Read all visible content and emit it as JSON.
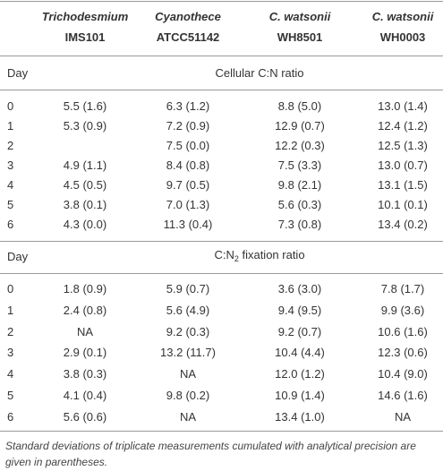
{
  "header": {
    "columns": [
      {
        "name": "Trichodesmium",
        "strain": "IMS101"
      },
      {
        "name": "Cyanothece",
        "strain": "ATCC51142"
      },
      {
        "name": "C. watsonii",
        "strain": "WH8501"
      },
      {
        "name": "C. watsonii",
        "strain": "WH0003"
      }
    ]
  },
  "sections": [
    {
      "day_label": "Day",
      "title": {
        "prefix": "Cellular C:N ratio"
      },
      "rows": [
        {
          "day": "0",
          "values": [
            "5.5 (1.6)",
            "6.3 (1.2)",
            "8.8 (5.0)",
            "13.0 (1.4)"
          ]
        },
        {
          "day": "1",
          "values": [
            "5.3 (0.9)",
            "7.2 (0.9)",
            "12.9 (0.7)",
            "12.4 (1.2)"
          ]
        },
        {
          "day": "2",
          "values": [
            null,
            "7.5 (0.0)",
            "12.2 (0.3)",
            "12.5 (1.3)"
          ]
        },
        {
          "day": "3",
          "values": [
            "4.9 (1.1)",
            "8.4 (0.8)",
            "7.5 (3.3)",
            "13.0 (0.7)"
          ]
        },
        {
          "day": "4",
          "values": [
            "4.5 (0.5)",
            "9.7 (0.5)",
            "9.8 (2.1)",
            "13.1 (1.5)"
          ]
        },
        {
          "day": "5",
          "values": [
            "3.8 (0.1)",
            "7.0 (1.3)",
            "5.6 (0.3)",
            "10.1 (0.1)"
          ]
        },
        {
          "day": "6",
          "values": [
            "4.3 (0.0)",
            "11.3 (0.4)",
            "7.3 (0.8)",
            "13.4 (0.2)"
          ]
        }
      ]
    },
    {
      "day_label": "Day",
      "title": {
        "prefix": "C:N",
        "subscript": "2",
        "suffix": " fixation ratio"
      },
      "rows": [
        {
          "day": "0",
          "values": [
            "1.8 (0.9)",
            "5.9 (0.7)",
            "3.6 (3.0)",
            "7.8 (1.7)"
          ]
        },
        {
          "day": "1",
          "values": [
            "2.4 (0.8)",
            "5.6 (4.9)",
            "9.4 (9.5)",
            "9.9 (3.6)"
          ]
        },
        {
          "day": "2",
          "values": [
            "NA",
            "9.2 (0.3)",
            "9.2 (0.7)",
            "10.6 (1.6)"
          ]
        },
        {
          "day": "3",
          "values": [
            "2.9 (0.1)",
            "13.2 (11.7)",
            "10.4 (4.4)",
            "12.3 (0.6)"
          ]
        },
        {
          "day": "4",
          "values": [
            "3.8 (0.3)",
            "NA",
            "12.0 (1.2)",
            "10.4 (9.0)"
          ]
        },
        {
          "day": "5",
          "values": [
            "4.1 (0.4)",
            "9.8 (0.2)",
            "10.9 (1.4)",
            "14.6 (1.6)"
          ]
        },
        {
          "day": "6",
          "values": [
            "5.6 (0.6)",
            "NA",
            "13.4 (1.0)",
            "NA"
          ]
        }
      ]
    }
  ],
  "footnote": "Standard deviations of triplicate measurements cumulated with analytical precision are given in parentheses."
}
